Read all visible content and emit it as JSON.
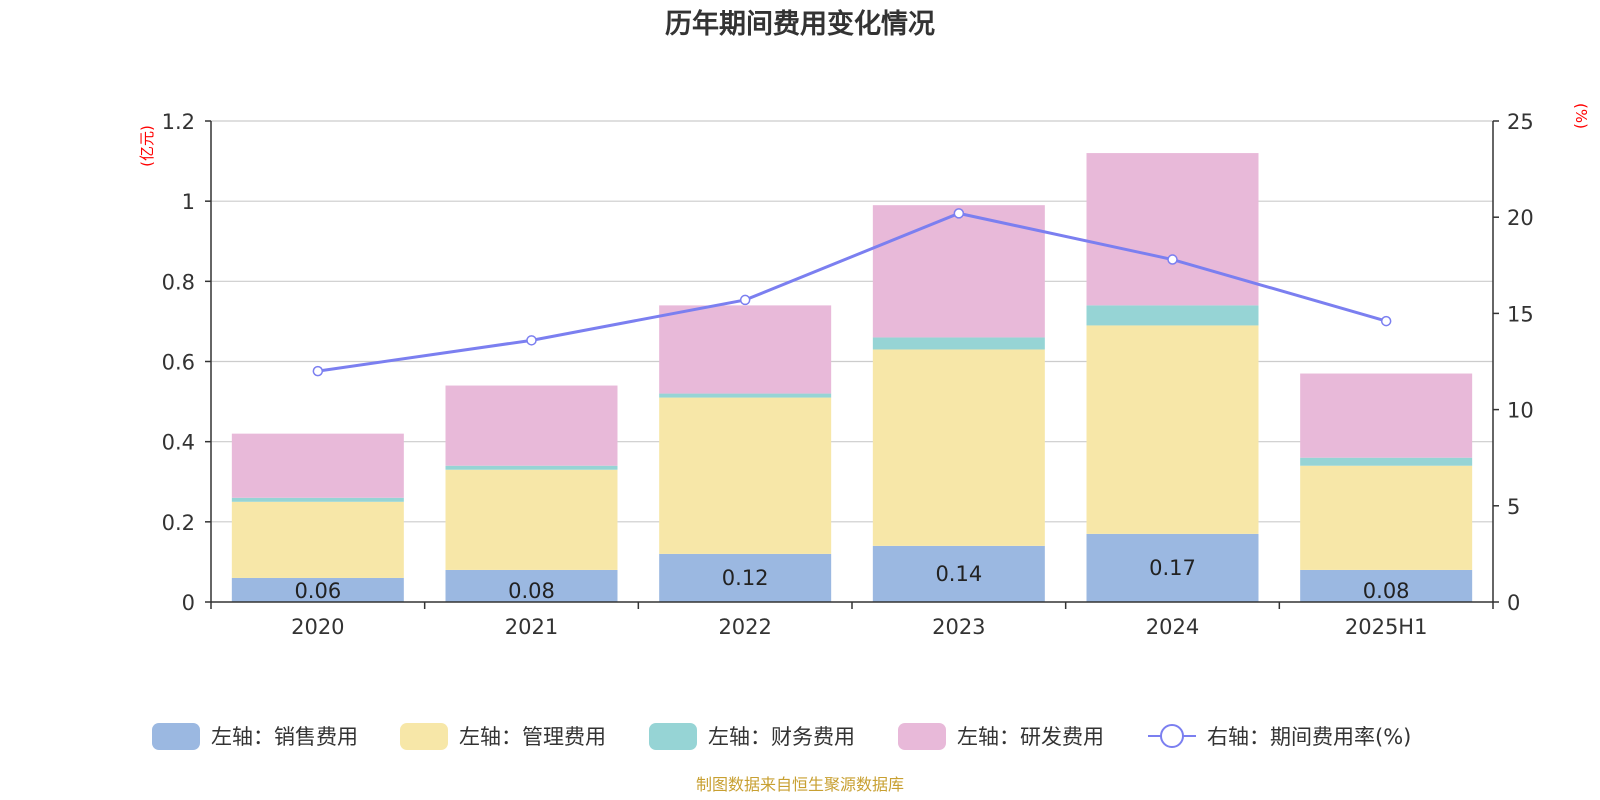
{
  "chart_data": {
    "type": "bar",
    "title": "历年期间费用变化情况",
    "categories": [
      "2020",
      "2021",
      "2022",
      "2023",
      "2024",
      "2025H1"
    ],
    "stacked": true,
    "left_axis": {
      "unit": "(亿元)",
      "ylim": [
        0,
        1.2
      ],
      "ticks": [
        "0",
        "0.2",
        "0.4",
        "0.6",
        "0.8",
        "1",
        "1.2"
      ]
    },
    "right_axis": {
      "unit": "(%)",
      "ylim": [
        0,
        25
      ],
      "ticks": [
        "0",
        "5",
        "10",
        "15",
        "20",
        "25"
      ]
    },
    "series": [
      {
        "name": "左轴：销售费用",
        "axis": "left",
        "color": "#9bb8e1",
        "values": [
          0.06,
          0.08,
          0.12,
          0.14,
          0.17,
          0.08
        ],
        "labels": [
          "0.06",
          "0.08",
          "0.12",
          "0.14",
          "0.17",
          "0.08"
        ]
      },
      {
        "name": "左轴：管理费用",
        "axis": "left",
        "color": "#f7e7a8",
        "values": [
          0.19,
          0.25,
          0.39,
          0.49,
          0.52,
          0.26
        ]
      },
      {
        "name": "左轴：财务费用",
        "axis": "left",
        "color": "#96d4d5",
        "values": [
          0.01,
          0.01,
          0.01,
          0.03,
          0.05,
          0.02
        ]
      },
      {
        "name": "左轴：研发费用",
        "axis": "left",
        "color": "#e8b9d9",
        "values": [
          0.16,
          0.2,
          0.22,
          0.33,
          0.38,
          0.21
        ]
      },
      {
        "name": "右轴：期间费用率(%)",
        "axis": "right",
        "type": "line",
        "color": "#7b7ff0",
        "values": [
          12.0,
          13.6,
          15.7,
          20.2,
          17.8,
          14.6
        ]
      }
    ],
    "grid": true,
    "legend_position": "bottom"
  },
  "source": "制图数据来自恒生聚源数据库"
}
